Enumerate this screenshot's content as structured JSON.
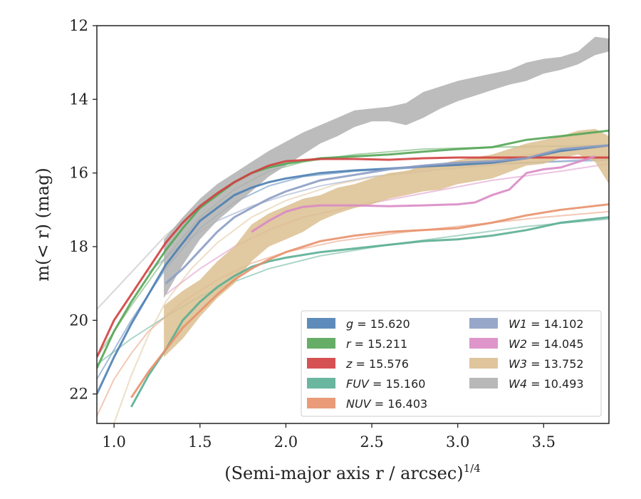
{
  "chart_data": {
    "type": "line",
    "xlabel": "(Semi-major axis r / arcsec)",
    "xlabel_exponent": "1/4",
    "ylabel": "m(< r) (mag)",
    "xlim": [
      0.9,
      3.88
    ],
    "ylim": [
      22.8,
      12.0
    ],
    "y_inverted": true,
    "grid": false,
    "legend_position": "lower-right",
    "xticks": [
      "1.0",
      "1.5",
      "2.0",
      "2.5",
      "3.0",
      "3.5"
    ],
    "yticks": [
      "12",
      "14",
      "16",
      "18",
      "20",
      "22"
    ],
    "series": [
      {
        "name": "g = 15.620",
        "label_var": "g",
        "label_value": "15.620",
        "color": "#4c7fb3",
        "data": [
          [
            0.9,
            22.0
          ],
          [
            1.0,
            21.0
          ],
          [
            1.1,
            20.1
          ],
          [
            1.2,
            19.3
          ],
          [
            1.3,
            18.5
          ],
          [
            1.4,
            17.9
          ],
          [
            1.5,
            17.3
          ],
          [
            1.6,
            16.95
          ],
          [
            1.7,
            16.6
          ],
          [
            1.8,
            16.4
          ],
          [
            1.9,
            16.25
          ],
          [
            2.0,
            16.15
          ],
          [
            2.2,
            16.0
          ],
          [
            2.4,
            15.93
          ],
          [
            2.6,
            15.88
          ],
          [
            2.8,
            15.82
          ],
          [
            3.0,
            15.78
          ],
          [
            3.2,
            15.72
          ],
          [
            3.4,
            15.6
          ],
          [
            3.6,
            15.4
          ],
          [
            3.88,
            15.25
          ]
        ],
        "model": [
          [
            0.9,
            21.6
          ],
          [
            1.1,
            20.0
          ],
          [
            1.3,
            18.6
          ],
          [
            1.5,
            17.5
          ],
          [
            1.7,
            16.8
          ],
          [
            1.9,
            16.35
          ],
          [
            2.1,
            16.1
          ],
          [
            2.4,
            15.95
          ],
          [
            2.8,
            15.85
          ],
          [
            3.2,
            15.75
          ],
          [
            3.88,
            15.65
          ]
        ]
      },
      {
        "name": "r = 15.211",
        "label_var": "r",
        "label_value": "15.211",
        "color": "#55a556",
        "data": [
          [
            0.9,
            21.3
          ],
          [
            1.0,
            20.3
          ],
          [
            1.1,
            19.5
          ],
          [
            1.2,
            18.8
          ],
          [
            1.3,
            18.1
          ],
          [
            1.4,
            17.5
          ],
          [
            1.5,
            16.95
          ],
          [
            1.6,
            16.6
          ],
          [
            1.7,
            16.25
          ],
          [
            1.8,
            16.0
          ],
          [
            1.9,
            15.85
          ],
          [
            2.0,
            15.75
          ],
          [
            2.2,
            15.6
          ],
          [
            2.4,
            15.55
          ],
          [
            2.6,
            15.5
          ],
          [
            2.8,
            15.42
          ],
          [
            3.0,
            15.35
          ],
          [
            3.2,
            15.3
          ],
          [
            3.4,
            15.1
          ],
          [
            3.6,
            15.0
          ],
          [
            3.88,
            14.85
          ]
        ],
        "model": [
          [
            0.9,
            21.0
          ],
          [
            1.1,
            19.6
          ],
          [
            1.3,
            18.3
          ],
          [
            1.5,
            17.2
          ],
          [
            1.7,
            16.45
          ],
          [
            1.9,
            15.95
          ],
          [
            2.1,
            15.7
          ],
          [
            2.4,
            15.5
          ],
          [
            2.8,
            15.35
          ],
          [
            3.2,
            15.3
          ],
          [
            3.88,
            15.25
          ]
        ]
      },
      {
        "name": "z = 15.576",
        "label_var": "z",
        "label_value": "15.576",
        "color": "#d13f3f",
        "data": [
          [
            0.9,
            21.0
          ],
          [
            1.0,
            20.0
          ],
          [
            1.1,
            19.3
          ],
          [
            1.2,
            18.6
          ],
          [
            1.3,
            17.9
          ],
          [
            1.4,
            17.35
          ],
          [
            1.5,
            16.9
          ],
          [
            1.6,
            16.55
          ],
          [
            1.7,
            16.25
          ],
          [
            1.8,
            16.0
          ],
          [
            1.9,
            15.8
          ],
          [
            2.0,
            15.68
          ],
          [
            2.2,
            15.62
          ],
          [
            2.4,
            15.62
          ],
          [
            2.6,
            15.64
          ],
          [
            2.8,
            15.6
          ],
          [
            3.0,
            15.58
          ],
          [
            3.2,
            15.58
          ],
          [
            3.4,
            15.58
          ],
          [
            3.6,
            15.58
          ],
          [
            3.88,
            15.58
          ]
        ]
      },
      {
        "name": "FUV = 15.160",
        "label_var": "FUV",
        "label_value": "15.160",
        "color": "#5aae93",
        "data": [
          [
            1.1,
            22.35
          ],
          [
            1.2,
            21.5
          ],
          [
            1.3,
            20.8
          ],
          [
            1.4,
            20.0
          ],
          [
            1.5,
            19.5
          ],
          [
            1.6,
            19.1
          ],
          [
            1.7,
            18.8
          ],
          [
            1.8,
            18.55
          ],
          [
            1.9,
            18.4
          ],
          [
            2.0,
            18.3
          ],
          [
            2.2,
            18.15
          ],
          [
            2.4,
            18.05
          ],
          [
            2.6,
            17.95
          ],
          [
            2.8,
            17.85
          ],
          [
            3.0,
            17.8
          ],
          [
            3.2,
            17.7
          ],
          [
            3.4,
            17.55
          ],
          [
            3.6,
            17.35
          ],
          [
            3.88,
            17.2
          ]
        ],
        "model": [
          [
            0.9,
            21.2
          ],
          [
            1.1,
            20.5
          ],
          [
            1.3,
            19.9
          ],
          [
            1.5,
            19.35
          ],
          [
            1.7,
            18.95
          ],
          [
            1.9,
            18.6
          ],
          [
            2.2,
            18.25
          ],
          [
            2.6,
            17.95
          ],
          [
            3.0,
            17.7
          ],
          [
            3.4,
            17.45
          ],
          [
            3.88,
            17.25
          ]
        ]
      },
      {
        "name": "NUV = 16.403",
        "label_var": "NUV",
        "label_value": "16.403",
        "color": "#e8916c",
        "data": [
          [
            1.1,
            22.1
          ],
          [
            1.2,
            21.4
          ],
          [
            1.3,
            20.8
          ],
          [
            1.4,
            20.2
          ],
          [
            1.5,
            19.75
          ],
          [
            1.6,
            19.3
          ],
          [
            1.7,
            18.9
          ],
          [
            1.8,
            18.6
          ],
          [
            1.9,
            18.35
          ],
          [
            2.0,
            18.15
          ],
          [
            2.2,
            17.85
          ],
          [
            2.4,
            17.7
          ],
          [
            2.6,
            17.6
          ],
          [
            2.8,
            17.55
          ],
          [
            3.0,
            17.5
          ],
          [
            3.2,
            17.35
          ],
          [
            3.4,
            17.15
          ],
          [
            3.6,
            17.0
          ],
          [
            3.88,
            16.85
          ]
        ],
        "model": [
          [
            0.9,
            22.6
          ],
          [
            1.0,
            21.6
          ],
          [
            1.1,
            20.9
          ],
          [
            1.2,
            20.3
          ],
          [
            1.4,
            19.5
          ],
          [
            1.6,
            18.9
          ],
          [
            1.8,
            18.45
          ],
          [
            2.0,
            18.15
          ],
          [
            2.3,
            17.85
          ],
          [
            2.7,
            17.6
          ],
          [
            3.1,
            17.4
          ],
          [
            3.5,
            17.2
          ],
          [
            3.88,
            17.05
          ]
        ]
      },
      {
        "name": "W1 = 14.102",
        "label_var": "W1",
        "label_value": "14.102",
        "color": "#8c9dc4",
        "data": [
          [
            1.3,
            19.0
          ],
          [
            1.4,
            18.6
          ],
          [
            1.5,
            18.1
          ],
          [
            1.6,
            17.6
          ],
          [
            1.7,
            17.2
          ],
          [
            1.8,
            16.95
          ],
          [
            1.9,
            16.7
          ],
          [
            2.0,
            16.5
          ],
          [
            2.1,
            16.35
          ],
          [
            2.2,
            16.2
          ],
          [
            2.4,
            16.05
          ],
          [
            2.6,
            15.9
          ],
          [
            2.8,
            15.8
          ],
          [
            3.0,
            15.72
          ],
          [
            3.2,
            15.68
          ],
          [
            3.4,
            15.6
          ],
          [
            3.6,
            15.35
          ],
          [
            3.88,
            15.25
          ]
        ],
        "model": [
          [
            1.2,
            18.7
          ],
          [
            1.4,
            17.9
          ],
          [
            1.6,
            17.3
          ],
          [
            1.8,
            16.9
          ],
          [
            2.0,
            16.6
          ],
          [
            2.2,
            16.35
          ],
          [
            2.5,
            16.1
          ],
          [
            2.9,
            15.9
          ],
          [
            3.3,
            15.75
          ],
          [
            3.88,
            15.6
          ]
        ]
      },
      {
        "name": "W2 = 14.045",
        "label_var": "W2",
        "label_value": "14.045",
        "color": "#d98ac4",
        "data": [
          [
            1.8,
            17.6
          ],
          [
            1.9,
            17.3
          ],
          [
            2.0,
            17.05
          ],
          [
            2.1,
            16.92
          ],
          [
            2.2,
            16.88
          ],
          [
            2.4,
            16.88
          ],
          [
            2.6,
            16.9
          ],
          [
            2.8,
            16.88
          ],
          [
            3.0,
            16.85
          ],
          [
            3.1,
            16.8
          ],
          [
            3.2,
            16.6
          ],
          [
            3.3,
            16.45
          ],
          [
            3.4,
            16.0
          ],
          [
            3.5,
            15.9
          ],
          [
            3.6,
            15.85
          ],
          [
            3.7,
            15.7
          ],
          [
            3.8,
            15.55
          ]
        ],
        "model": [
          [
            1.3,
            19.3
          ],
          [
            1.5,
            18.6
          ],
          [
            1.7,
            18.0
          ],
          [
            1.9,
            17.55
          ],
          [
            2.1,
            17.2
          ],
          [
            2.4,
            16.9
          ],
          [
            2.8,
            16.55
          ],
          [
            3.2,
            16.2
          ],
          [
            3.6,
            15.95
          ],
          [
            3.88,
            15.75
          ]
        ]
      },
      {
        "name": "W3 = 13.752",
        "label_var": "W3",
        "label_value": "13.752",
        "color": "#dcbf91",
        "band": [
          [
            1.29,
            19.6,
            21.0
          ],
          [
            1.4,
            19.2,
            20.5
          ],
          [
            1.5,
            18.9,
            19.9
          ],
          [
            1.6,
            18.4,
            19.4
          ],
          [
            1.7,
            18.0,
            19.0
          ],
          [
            1.8,
            17.4,
            18.4
          ],
          [
            1.9,
            17.1,
            18.0
          ],
          [
            2.0,
            16.9,
            17.8
          ],
          [
            2.1,
            16.7,
            17.6
          ],
          [
            2.2,
            16.6,
            17.3
          ],
          [
            2.3,
            16.4,
            17.1
          ],
          [
            2.4,
            16.3,
            16.95
          ],
          [
            2.5,
            16.15,
            16.85
          ],
          [
            2.6,
            16.0,
            16.7
          ],
          [
            2.7,
            15.95,
            16.6
          ],
          [
            2.8,
            15.8,
            16.5
          ],
          [
            2.9,
            15.75,
            16.45
          ],
          [
            3.0,
            15.65,
            16.3
          ],
          [
            3.2,
            15.5,
            16.15
          ],
          [
            3.4,
            15.2,
            15.8
          ],
          [
            3.5,
            15.1,
            15.75
          ],
          [
            3.6,
            15.0,
            15.6
          ],
          [
            3.7,
            14.85,
            15.5
          ],
          [
            3.8,
            14.8,
            15.7
          ],
          [
            3.88,
            15.0,
            16.3
          ]
        ],
        "model": [
          [
            1.0,
            22.8
          ],
          [
            1.1,
            21.5
          ],
          [
            1.2,
            20.4
          ],
          [
            1.3,
            19.5
          ],
          [
            1.45,
            18.6
          ],
          [
            1.6,
            17.9
          ],
          [
            1.8,
            17.2
          ],
          [
            2.0,
            16.75
          ],
          [
            2.3,
            16.3
          ],
          [
            2.7,
            15.95
          ],
          [
            3.1,
            15.7
          ],
          [
            3.5,
            15.45
          ],
          [
            3.88,
            15.3
          ]
        ]
      },
      {
        "name": "W4 = 10.493",
        "label_var": "W4",
        "label_value": "10.493",
        "color": "#b0b0b0",
        "band": [
          [
            1.29,
            17.8,
            19.4
          ],
          [
            1.4,
            17.2,
            18.5
          ],
          [
            1.5,
            16.7,
            17.8
          ],
          [
            1.6,
            16.3,
            17.3
          ],
          [
            1.7,
            16.0,
            16.9
          ],
          [
            1.8,
            15.7,
            16.5
          ],
          [
            1.9,
            15.4,
            16.1
          ],
          [
            2.0,
            15.15,
            15.8
          ],
          [
            2.1,
            14.9,
            15.5
          ],
          [
            2.2,
            14.7,
            15.2
          ],
          [
            2.3,
            14.5,
            15.0
          ],
          [
            2.4,
            14.3,
            14.75
          ],
          [
            2.5,
            14.25,
            14.6
          ],
          [
            2.6,
            14.2,
            14.6
          ],
          [
            2.7,
            14.1,
            14.7
          ],
          [
            2.8,
            13.8,
            14.5
          ],
          [
            2.9,
            13.65,
            14.25
          ],
          [
            3.0,
            13.5,
            14.05
          ],
          [
            3.1,
            13.4,
            13.9
          ],
          [
            3.2,
            13.3,
            13.75
          ],
          [
            3.3,
            13.2,
            13.6
          ],
          [
            3.4,
            13.0,
            13.5
          ],
          [
            3.5,
            12.9,
            13.3
          ],
          [
            3.6,
            12.85,
            13.2
          ],
          [
            3.7,
            12.7,
            13.05
          ],
          [
            3.8,
            12.3,
            12.8
          ],
          [
            3.88,
            12.35,
            12.7
          ]
        ],
        "model": [
          [
            0.9,
            19.7
          ],
          [
            1.1,
            18.7
          ],
          [
            1.3,
            17.7
          ],
          [
            1.5,
            16.9
          ],
          [
            1.7,
            16.3
          ],
          [
            1.9,
            15.8
          ]
        ]
      }
    ]
  }
}
